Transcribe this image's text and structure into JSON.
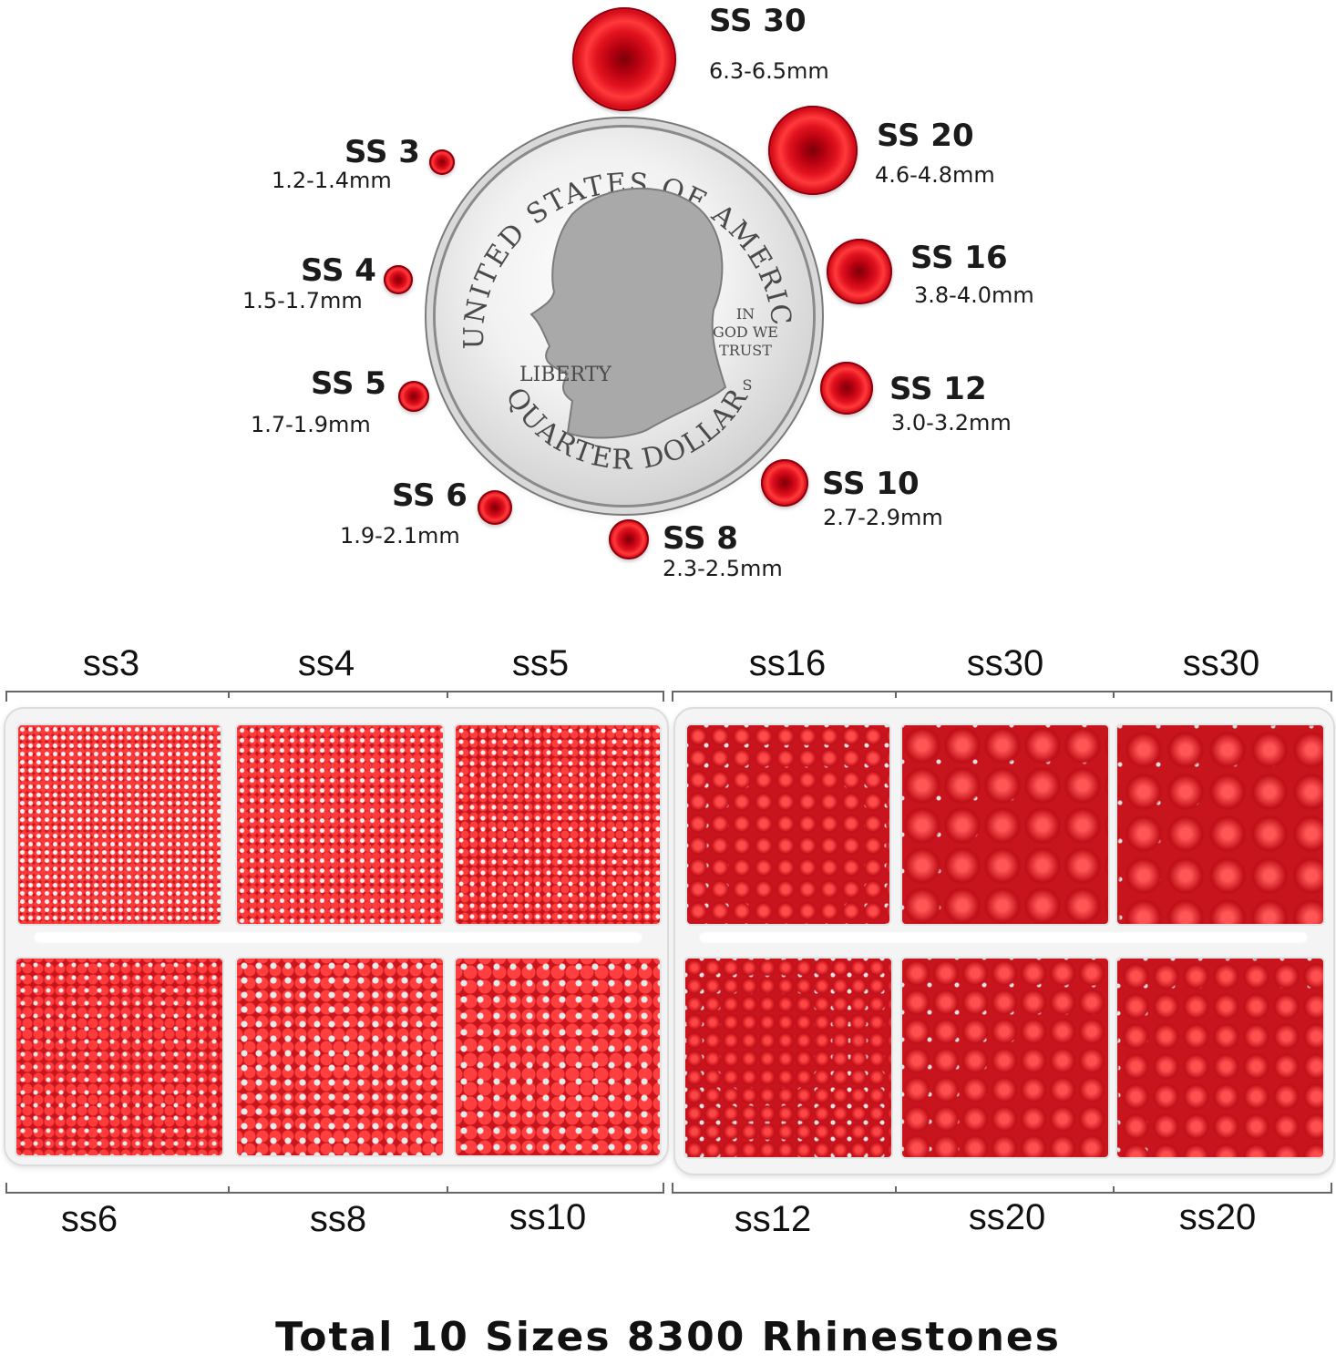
{
  "sizes": [
    {
      "name": "SS 30",
      "mm": "6.3-6.5mm"
    },
    {
      "name": "SS 20",
      "mm": "4.6-4.8mm"
    },
    {
      "name": "SS 16",
      "mm": "3.8-4.0mm"
    },
    {
      "name": "SS 12",
      "mm": "3.0-3.2mm"
    },
    {
      "name": "SS 10",
      "mm": "2.7-2.9mm"
    },
    {
      "name": "SS 8",
      "mm": "2.3-2.5mm"
    },
    {
      "name": "SS 6",
      "mm": "1.9-2.1mm"
    },
    {
      "name": "SS 5",
      "mm": "1.7-1.9mm"
    },
    {
      "name": "SS 4",
      "mm": "1.5-1.7mm"
    },
    {
      "name": "SS 3",
      "mm": "1.2-1.4mm"
    }
  ],
  "coin": {
    "top_text": "UNITED STATES OF AMERICA",
    "bottom_text": "QUARTER DOLLAR",
    "liberty": "LIBERTY",
    "motto": [
      "IN",
      "GOD WE",
      "TRUST"
    ],
    "mint": "S"
  },
  "tray_labels": {
    "top": [
      "ss3",
      "ss4",
      "ss5",
      "ss16",
      "ss30",
      "ss30"
    ],
    "bottom": [
      "ss6",
      "ss8",
      "ss10",
      "ss12",
      "ss20",
      "ss20"
    ]
  },
  "footer": "Total 10 Sizes 8300 Rhinestones",
  "colors": {
    "gem_red": "#d40b18",
    "tray": "#f4f4f4"
  }
}
